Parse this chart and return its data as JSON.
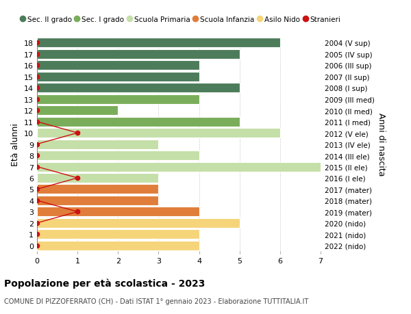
{
  "ages": [
    18,
    17,
    16,
    15,
    14,
    13,
    12,
    11,
    10,
    9,
    8,
    7,
    6,
    5,
    4,
    3,
    2,
    1,
    0
  ],
  "right_labels": [
    "2004 (V sup)",
    "2005 (IV sup)",
    "2006 (III sup)",
    "2007 (II sup)",
    "2008 (I sup)",
    "2009 (III med)",
    "2010 (II med)",
    "2011 (I med)",
    "2012 (V ele)",
    "2013 (IV ele)",
    "2014 (III ele)",
    "2015 (II ele)",
    "2016 (I ele)",
    "2017 (mater)",
    "2018 (mater)",
    "2019 (mater)",
    "2020 (nido)",
    "2021 (nido)",
    "2022 (nido)"
  ],
  "bar_values": [
    6,
    5,
    4,
    4,
    5,
    4,
    2,
    5,
    6,
    3,
    4,
    7,
    3,
    3,
    3,
    4,
    5,
    4,
    4
  ],
  "bar_colors": [
    "#4d7c5a",
    "#4d7c5a",
    "#4d7c5a",
    "#4d7c5a",
    "#4d7c5a",
    "#7aad5a",
    "#7aad5a",
    "#7aad5a",
    "#c5dfa8",
    "#c5dfa8",
    "#c5dfa8",
    "#c5dfa8",
    "#c5dfa8",
    "#e07d3a",
    "#e07d3a",
    "#e07d3a",
    "#f5d47a",
    "#f5d47a",
    "#f5d47a"
  ],
  "stranieri_ages": [
    18,
    17,
    16,
    15,
    14,
    13,
    12,
    11,
    10,
    9,
    8,
    7,
    6,
    5,
    4,
    3,
    2,
    1,
    0
  ],
  "stranieri_values": [
    0,
    0,
    0,
    0,
    0,
    0,
    0,
    0,
    1,
    0,
    0,
    0,
    1,
    0,
    0,
    1,
    0,
    0,
    0
  ],
  "legend_labels": [
    "Sec. II grado",
    "Sec. I grado",
    "Scuola Primaria",
    "Scuola Infanzia",
    "Asilo Nido",
    "Stranieri"
  ],
  "legend_colors": [
    "#4d7c5a",
    "#7aad5a",
    "#c5dfa8",
    "#e07d3a",
    "#f5d47a",
    "#cc1111"
  ],
  "ylabel": "Età alunni",
  "ylabel_right": "Anni di nascita",
  "title": "Popolazione per età scolastica - 2023",
  "subtitle": "COMUNE DI PIZZOFERRATO (CH) - Dati ISTAT 1° gennaio 2023 - Elaborazione TUTTITALIA.IT",
  "xlim": [
    0,
    7
  ],
  "background_color": "#ffffff",
  "grid_color": "#cccccc"
}
